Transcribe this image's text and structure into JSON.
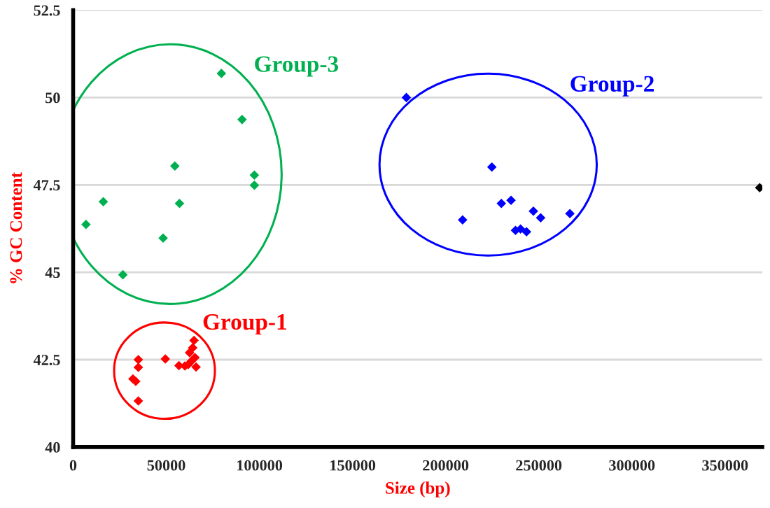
{
  "chart_data": {
    "type": "scatter",
    "xlabel": "Size (bp)",
    "ylabel": "% GC Content",
    "xlim": [
      0,
      370000
    ],
    "ylim": [
      40,
      52.5
    ],
    "xticks": [
      0,
      50000,
      100000,
      150000,
      200000,
      250000,
      300000,
      350000
    ],
    "yticks": [
      40,
      42.5,
      45,
      47.5,
      50,
      52.5
    ],
    "grid": "y",
    "marker": "diamond",
    "series": [
      {
        "name": "Group-1",
        "color": "#ff0000",
        "x": [
          35000,
          35000,
          32100,
          33600,
          35000,
          49500,
          56800,
          60000,
          64900,
          64200,
          62500,
          65400,
          63500,
          66000,
          61800
        ],
        "values": [
          42.5,
          42.28,
          41.95,
          41.88,
          41.32,
          42.52,
          42.33,
          42.32,
          43.05,
          42.84,
          42.7,
          42.56,
          42.46,
          42.29,
          42.36
        ]
      },
      {
        "name": "Group-2",
        "color": "#0000ff",
        "x": [
          178900,
          224800,
          229900,
          235100,
          209100,
          247100,
          251000,
          266700,
          237500,
          240200,
          243400
        ],
        "values": [
          50.0,
          48.01,
          46.97,
          47.06,
          46.5,
          46.75,
          46.56,
          46.68,
          46.2,
          46.24,
          46.16
        ]
      },
      {
        "name": "Group-3",
        "color": "#00b050",
        "x": [
          79600,
          90700,
          54600,
          97300,
          97300,
          16200,
          57100,
          6900,
          48300,
          26700
        ],
        "values": [
          50.69,
          49.37,
          48.04,
          47.78,
          47.49,
          47.02,
          46.97,
          46.37,
          45.98,
          44.93
        ]
      },
      {
        "color": "#000000",
        "x": [
          368600
        ],
        "values": [
          47.42
        ]
      }
    ]
  }
}
